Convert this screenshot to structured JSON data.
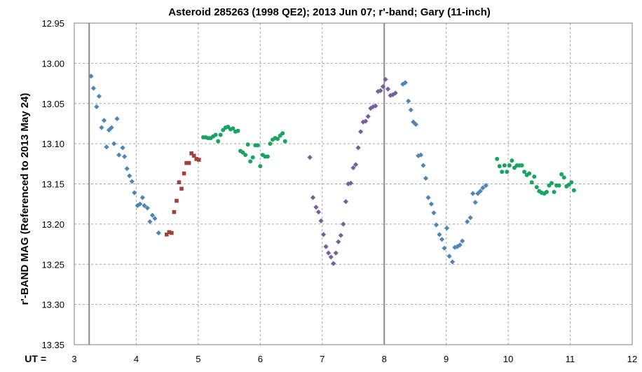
{
  "chart_data": {
    "type": "scatter",
    "title": "Asteroid  285263  (1998  QE2); 2013  Jun  07;  r'-band;  Gary  (11-inch)",
    "xlabel": "UT =",
    "ylabel": "r'-BAND MAG  (Referenced to 2013  May  24)",
    "xlim": [
      3,
      12
    ],
    "ylim": [
      12.95,
      13.35
    ],
    "y_inverted": true,
    "x_ticks": [
      "3",
      "4",
      "5",
      "6",
      "7",
      "8",
      "9",
      "10",
      "11",
      "12"
    ],
    "y_ticks": [
      "12.95",
      "13.00",
      "13.05",
      "13.10",
      "13.15",
      "13.20",
      "13.25",
      "13.30",
      "13.35"
    ],
    "grid": true,
    "vertical_markers": [
      3.24,
      8.0
    ],
    "series": [
      {
        "marker": "diamond",
        "color": "#4f86b5",
        "points": [
          [
            3.27,
            13.016
          ],
          [
            3.31,
            13.031
          ],
          [
            3.36,
            13.054
          ],
          [
            3.4,
            13.041
          ],
          [
            3.44,
            13.08
          ],
          [
            3.48,
            13.071
          ],
          [
            3.52,
            13.104
          ],
          [
            3.56,
            13.083
          ],
          [
            3.6,
            13.08
          ],
          [
            3.64,
            13.1
          ],
          [
            3.69,
            13.069
          ],
          [
            3.72,
            13.114
          ],
          [
            3.78,
            13.105
          ],
          [
            3.81,
            13.116
          ],
          [
            3.85,
            13.131
          ],
          [
            3.89,
            13.14
          ],
          [
            3.93,
            13.147
          ],
          [
            3.97,
            13.161
          ],
          [
            4.02,
            13.177
          ],
          [
            4.06,
            13.175
          ],
          [
            4.1,
            13.167
          ],
          [
            4.13,
            13.177
          ],
          [
            4.18,
            13.18
          ],
          [
            4.22,
            13.197
          ],
          [
            4.26,
            13.189
          ],
          [
            4.3,
            13.193
          ],
          [
            4.36,
            13.211
          ],
          [
            8.3,
            13.026
          ],
          [
            8.34,
            13.024
          ],
          [
            8.39,
            13.047
          ],
          [
            8.43,
            13.058
          ],
          [
            8.47,
            13.073
          ],
          [
            8.51,
            13.076
          ],
          [
            8.55,
            13.115
          ],
          [
            8.59,
            13.114
          ],
          [
            8.63,
            13.127
          ],
          [
            8.67,
            13.143
          ],
          [
            8.71,
            13.167
          ],
          [
            8.76,
            13.175
          ],
          [
            8.8,
            13.186
          ],
          [
            8.84,
            13.201
          ],
          [
            8.89,
            13.213
          ],
          [
            8.93,
            13.219
          ],
          [
            8.97,
            13.23
          ],
          [
            9.01,
            13.205
          ],
          [
            9.05,
            13.24
          ],
          [
            9.1,
            13.247
          ],
          [
            9.14,
            13.229
          ],
          [
            9.18,
            13.228
          ],
          [
            9.22,
            13.226
          ],
          [
            9.26,
            13.221
          ],
          [
            9.34,
            13.197
          ],
          [
            9.39,
            13.192
          ],
          [
            9.43,
            13.162
          ],
          [
            9.47,
            13.173
          ],
          [
            9.51,
            13.162
          ],
          [
            9.55,
            13.159
          ],
          [
            9.59,
            13.155
          ],
          [
            9.64,
            13.152
          ]
        ]
      },
      {
        "marker": "square",
        "color": "#a0413a",
        "points": [
          [
            4.49,
            13.213
          ],
          [
            4.53,
            13.21
          ],
          [
            4.57,
            13.211
          ],
          [
            4.61,
            13.185
          ],
          [
            4.65,
            13.171
          ],
          [
            4.69,
            13.148
          ],
          [
            4.73,
            13.156
          ],
          [
            4.77,
            13.137
          ],
          [
            4.81,
            13.124
          ],
          [
            4.85,
            13.124
          ],
          [
            4.89,
            13.112
          ],
          [
            4.93,
            13.115
          ],
          [
            4.97,
            13.119
          ],
          [
            5.01,
            13.12
          ]
        ]
      },
      {
        "marker": "circle",
        "color": "#19a462",
        "points": [
          [
            5.08,
            13.092
          ],
          [
            5.12,
            13.092
          ],
          [
            5.16,
            13.093
          ],
          [
            5.2,
            13.093
          ],
          [
            5.24,
            13.091
          ],
          [
            5.28,
            13.089
          ],
          [
            5.32,
            13.097
          ],
          [
            5.36,
            13.089
          ],
          [
            5.4,
            13.083
          ],
          [
            5.44,
            13.08
          ],
          [
            5.48,
            13.079
          ],
          [
            5.52,
            13.082
          ],
          [
            5.56,
            13.081
          ],
          [
            5.6,
            13.085
          ],
          [
            5.64,
            13.084
          ],
          [
            5.68,
            13.109
          ],
          [
            5.72,
            13.111
          ],
          [
            5.76,
            13.114
          ],
          [
            5.8,
            13.101
          ],
          [
            5.84,
            13.122
          ],
          [
            5.88,
            13.117
          ],
          [
            5.92,
            13.102
          ],
          [
            5.96,
            13.102
          ],
          [
            6.0,
            13.128
          ],
          [
            6.04,
            13.114
          ],
          [
            6.08,
            13.116
          ],
          [
            6.12,
            13.116
          ],
          [
            6.16,
            13.1
          ],
          [
            6.2,
            13.095
          ],
          [
            6.24,
            13.093
          ],
          [
            6.28,
            13.094
          ],
          [
            6.32,
            13.09
          ],
          [
            6.36,
            13.087
          ],
          [
            6.4,
            13.097
          ],
          [
            9.82,
            13.119
          ],
          [
            9.86,
            13.128
          ],
          [
            9.9,
            13.135
          ],
          [
            9.94,
            13.127
          ],
          [
            9.98,
            13.135
          ],
          [
            10.02,
            13.127
          ],
          [
            10.06,
            13.121
          ],
          [
            10.1,
            13.13
          ],
          [
            10.14,
            13.127
          ],
          [
            10.18,
            13.127
          ],
          [
            10.22,
            13.127
          ],
          [
            10.26,
            13.135
          ],
          [
            10.3,
            13.139
          ],
          [
            10.34,
            13.137
          ],
          [
            10.38,
            13.148
          ],
          [
            10.42,
            13.141
          ],
          [
            10.46,
            13.154
          ],
          [
            10.5,
            13.159
          ],
          [
            10.54,
            13.161
          ],
          [
            10.58,
            13.162
          ],
          [
            10.62,
            13.16
          ],
          [
            10.66,
            13.152
          ],
          [
            10.7,
            13.149
          ],
          [
            10.74,
            13.16
          ],
          [
            10.78,
            13.152
          ],
          [
            10.82,
            13.152
          ],
          [
            10.86,
            13.138
          ],
          [
            10.9,
            13.142
          ],
          [
            10.94,
            13.153
          ],
          [
            10.98,
            13.151
          ],
          [
            11.02,
            13.148
          ],
          [
            11.06,
            13.158
          ]
        ]
      },
      {
        "marker": "diamond",
        "color": "#76609a",
        "points": [
          [
            6.8,
            13.117
          ],
          [
            6.85,
            13.167
          ],
          [
            6.9,
            13.179
          ],
          [
            6.94,
            13.185
          ],
          [
            6.98,
            13.196
          ],
          [
            7.02,
            13.213
          ],
          [
            7.06,
            13.228
          ],
          [
            7.1,
            13.236
          ],
          [
            7.14,
            13.241
          ],
          [
            7.18,
            13.249
          ],
          [
            7.22,
            13.236
          ],
          [
            7.26,
            13.222
          ],
          [
            7.3,
            13.214
          ],
          [
            7.34,
            13.2
          ],
          [
            7.38,
            13.172
          ],
          [
            7.42,
            13.15
          ],
          [
            7.46,
            13.149
          ],
          [
            7.5,
            13.13
          ],
          [
            7.54,
            13.126
          ],
          [
            7.58,
            13.105
          ],
          [
            7.62,
            13.085
          ],
          [
            7.66,
            13.073
          ],
          [
            7.7,
            13.072
          ],
          [
            7.74,
            13.066
          ],
          [
            7.78,
            13.056
          ],
          [
            7.82,
            13.054
          ],
          [
            7.86,
            13.053
          ],
          [
            7.9,
            13.035
          ],
          [
            7.94,
            13.034
          ],
          [
            7.98,
            13.029
          ],
          [
            8.02,
            13.02
          ],
          [
            8.06,
            13.032
          ],
          [
            8.1,
            13.04
          ],
          [
            8.14,
            13.039
          ],
          [
            8.18,
            13.037
          ]
        ]
      }
    ]
  }
}
